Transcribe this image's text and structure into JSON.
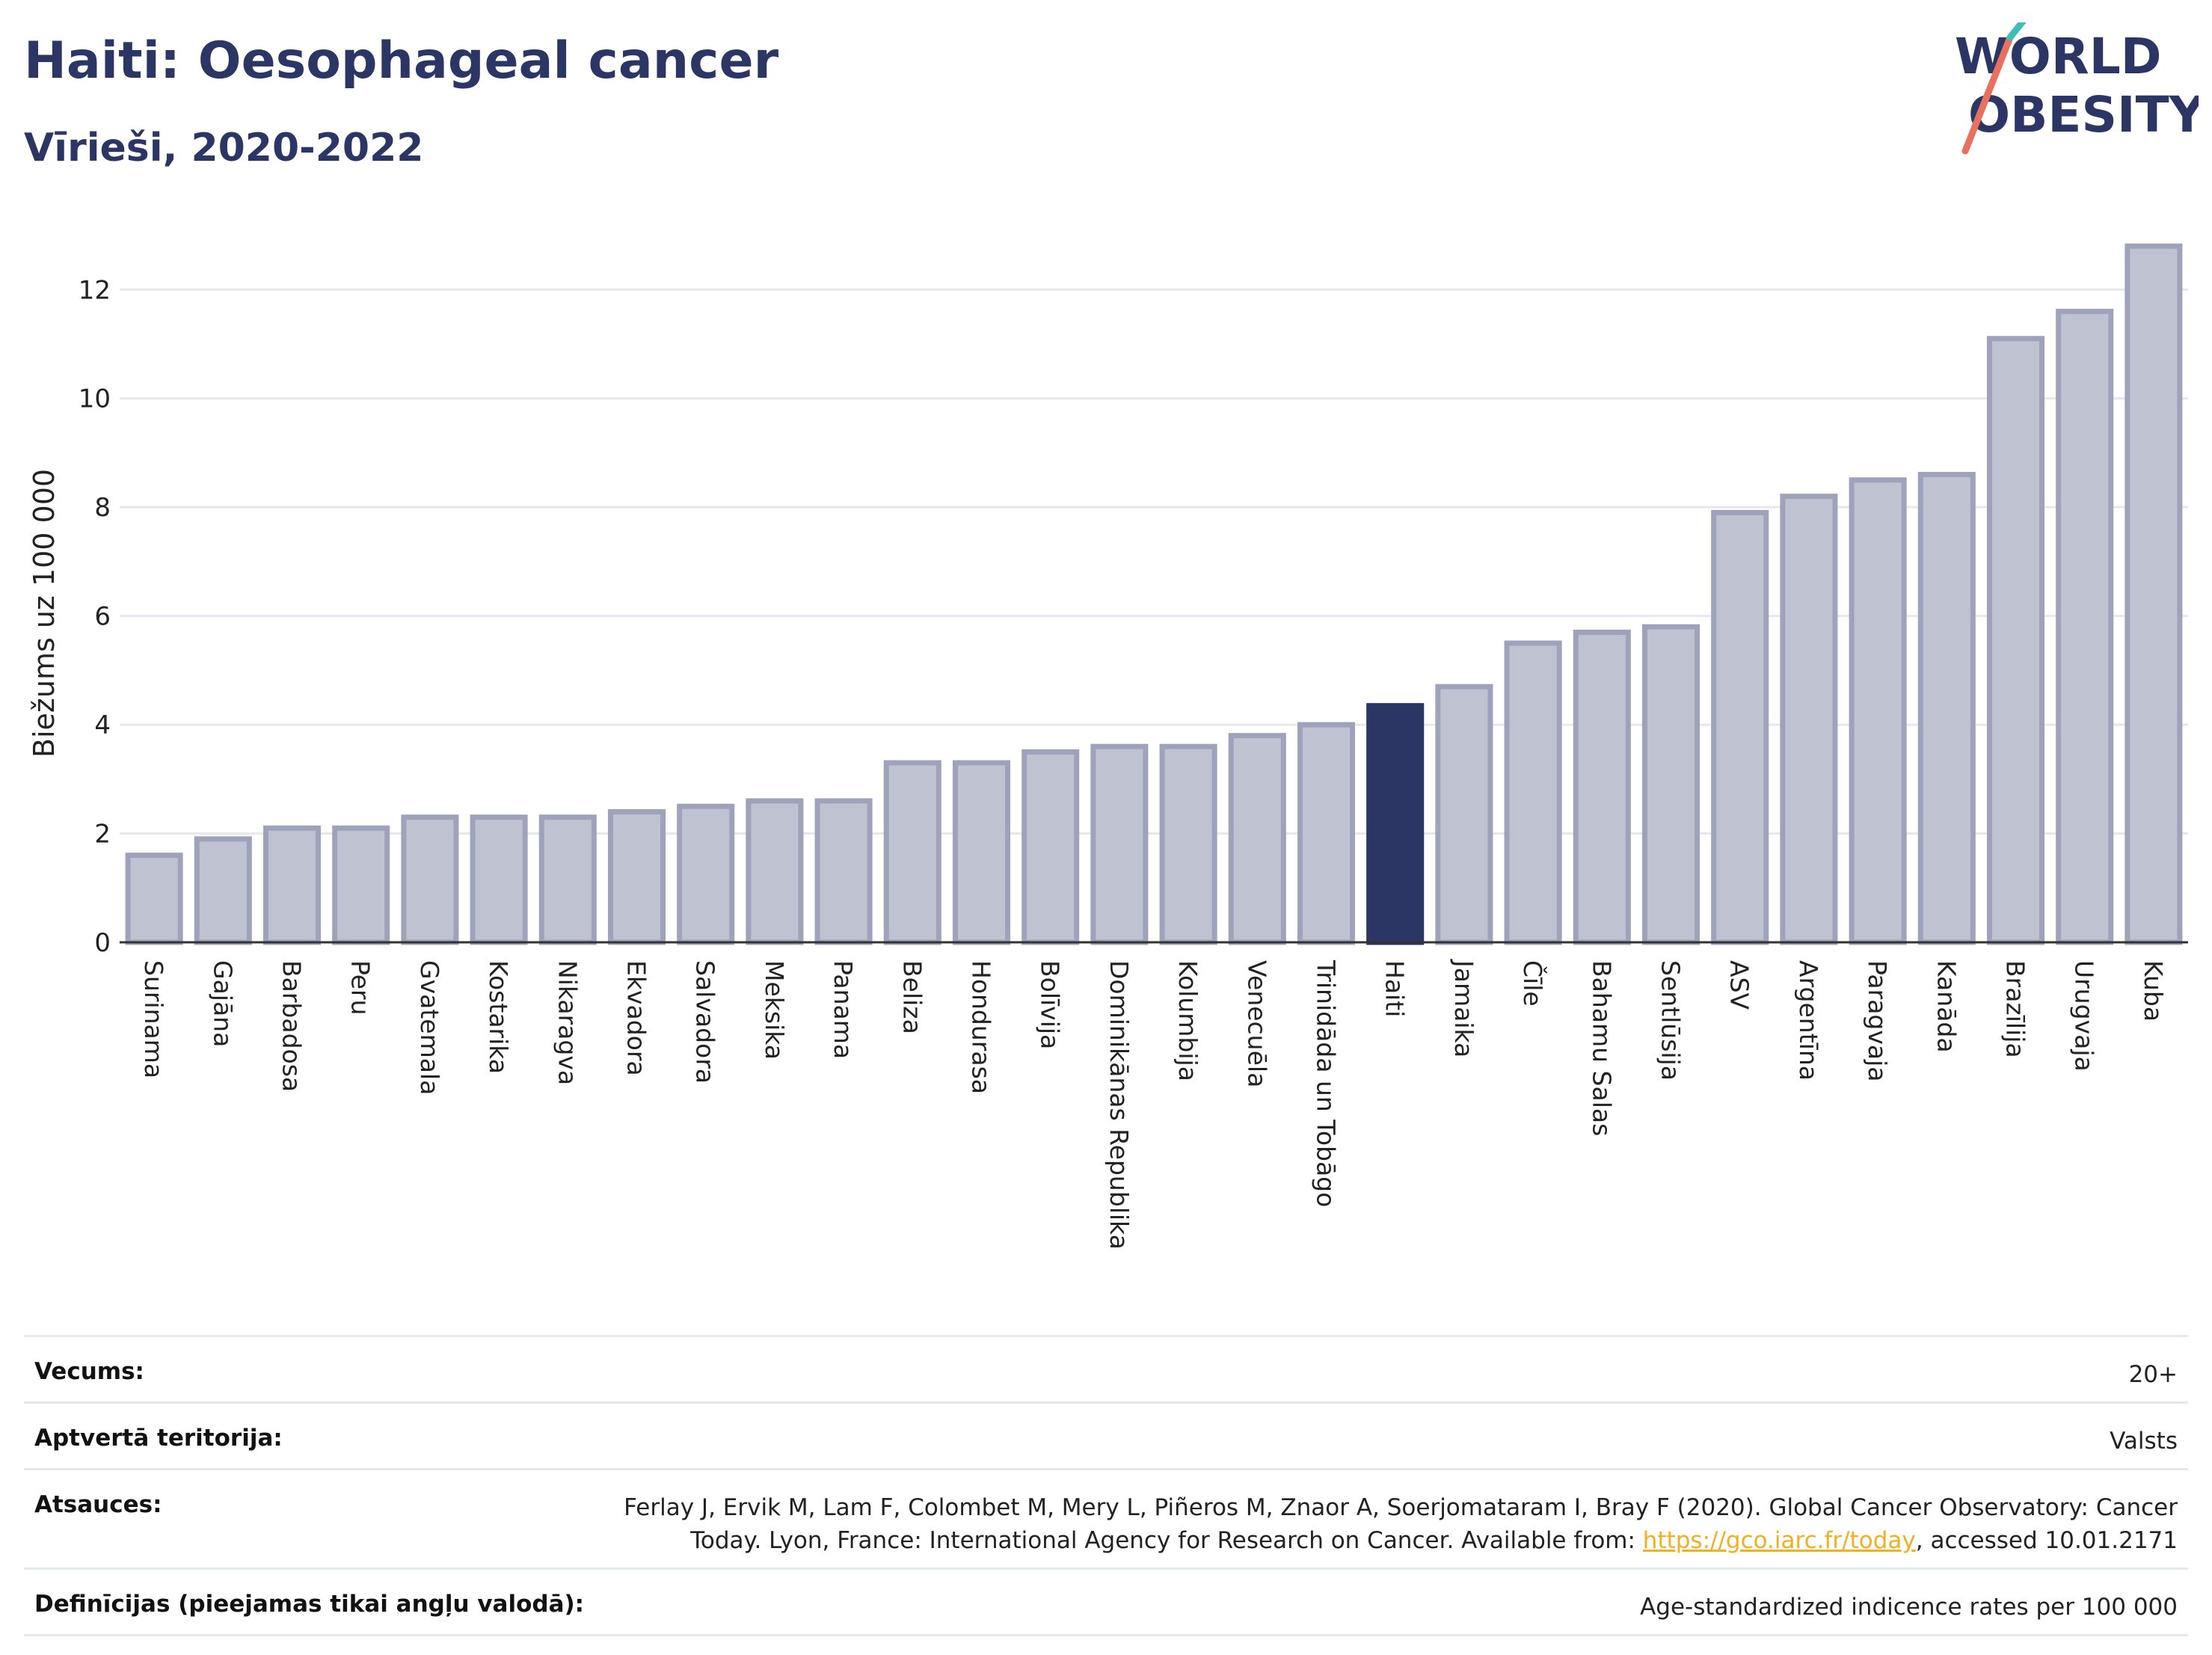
{
  "header": {
    "title": "Haiti: Oesophageal cancer",
    "subtitle": "Vīrieši, 2020-2022"
  },
  "logo": {
    "line1": "WORLD",
    "line2": "OBESITY"
  },
  "colors": {
    "highlight": "#2b3664",
    "bar": "#bfc2d0",
    "bar_border": "#9ea3bb",
    "grid": "#e6e8ef"
  },
  "chart_data": {
    "type": "bar",
    "ylabel": "Biežums uz 100 000",
    "xlabel": "",
    "ylim": [
      0,
      13.2
    ],
    "yticks": [
      0,
      2,
      4,
      6,
      8,
      10,
      12
    ],
    "grid": true,
    "highlight": "Haiti",
    "categories": [
      "Surinama",
      "Gajāna",
      "Barbadosa",
      "Peru",
      "Gvatemala",
      "Kostarika",
      "Nikaragva",
      "Ekvadora",
      "Salvadora",
      "Meksika",
      "Panama",
      "Beliza",
      "Hondurasa",
      "Bolīvija",
      "Dominikānas Republika",
      "Kolumbija",
      "Venecuēla",
      "Trinidāda un Tobāgo",
      "Haiti",
      "Jamaika",
      "Čīle",
      "Bahamu Salas",
      "Sentlūsija",
      "ASV",
      "Argentīna",
      "Paragvaja",
      "Kanāda",
      "Brazīlija",
      "Urugvaja",
      "Kuba"
    ],
    "values": [
      1.6,
      1.9,
      2.1,
      2.1,
      2.3,
      2.3,
      2.3,
      2.4,
      2.5,
      2.6,
      2.6,
      3.3,
      3.3,
      3.5,
      3.6,
      3.6,
      3.8,
      4.0,
      4.35,
      4.7,
      5.5,
      5.7,
      5.8,
      7.9,
      8.2,
      8.5,
      8.6,
      11.1,
      11.6,
      12.8
    ]
  },
  "info": {
    "rows": [
      {
        "label": "Vecums:",
        "value": "20+"
      },
      {
        "label": "Aptvertā teritorija:",
        "value": "Valsts"
      },
      {
        "label": "Atsauces:",
        "value_line1": "Ferlay J, Ervik M, Lam F, Colombet M, Mery L, Piñeros M, Znaor A, Soerjomataram I, Bray F (2020). Global Cancer Observatory: Cancer",
        "value_line2_pre": "Today. Lyon, France: International Agency for Research on Cancer. Available from: ",
        "link": "https://gco.iarc.fr/today",
        "value_line2_post": ", accessed 10.01.2171"
      },
      {
        "label": "Definīcijas (pieejamas tikai angļu valodā):",
        "value": "Age-standardized indicence rates per 100 000"
      }
    ]
  }
}
